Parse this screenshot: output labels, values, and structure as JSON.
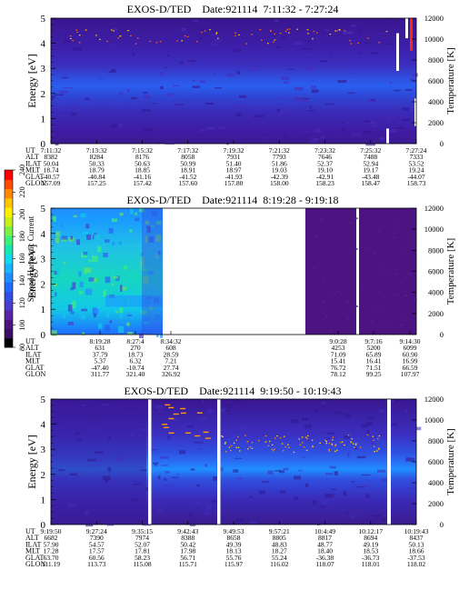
{
  "colorbar": {
    "label": "Second Harmonic Current",
    "ticks": [
      "80",
      "100",
      "120",
      "140",
      "160",
      "180",
      "200",
      "220",
      "240"
    ],
    "colors": [
      "#000000",
      "#3a0f63",
      "#4b1480",
      "#5a24a8",
      "#4a3ccc",
      "#3050e4",
      "#1f6bff",
      "#1f8fff",
      "#18b5ff",
      "#12d8e8",
      "#17e6b0",
      "#3ef07a",
      "#7ef045",
      "#c8f018",
      "#fff000",
      "#ffc400",
      "#ff8a00",
      "#ff4a00",
      "#ff0000"
    ]
  },
  "panels": [
    {
      "title": "EXOS-D/TED",
      "date": "Date:921114",
      "time": "7:11:32 - 7:27:24",
      "ylabel": "Energy [eV]",
      "y2label": "Temperature [K]",
      "yticks": [
        "0",
        "1",
        "2",
        "3",
        "4",
        "5"
      ],
      "y2ticks": [
        "0",
        "2000",
        "4000",
        "6000",
        "8000",
        "10000",
        "12000"
      ],
      "row_labels": [
        "UT",
        "ALT",
        "ILAT",
        "MLT",
        "GLAT",
        "GLON"
      ],
      "columns": [
        [
          "7:11:32",
          "8382",
          "50.04",
          "18.74",
          "-40.57",
          "157.09"
        ],
        [
          "7:13:32",
          "8284",
          "50.33",
          "18.79",
          "-40.84",
          "157.25"
        ],
        [
          "7:15:32",
          "8176",
          "50.63",
          "18.85",
          "-41.16",
          "157.42"
        ],
        [
          "7:17:32",
          "8058",
          "50.99",
          "18.91",
          "-41.52",
          "157.60"
        ],
        [
          "7:19:32",
          "7931",
          "51.40",
          "18.97",
          "-41.93",
          "157.80"
        ],
        [
          "7:21:32",
          "7793",
          "51.86",
          "19.03",
          "-42.39",
          "158.00"
        ],
        [
          "7:23:32",
          "7646",
          "52.37",
          "19.10",
          "-42.91",
          "158.23"
        ],
        [
          "7:25:32",
          "7488",
          "52.94",
          "19.17",
          "-43.48",
          "158.47"
        ],
        [
          "7:27:24",
          "7333",
          "53.52",
          "19.24",
          "-44.07",
          "158.73"
        ]
      ]
    },
    {
      "title": "EXOS-D/TED",
      "date": "Date:921114",
      "time": "8:19:28 - 9:19:18",
      "ylabel": "Energy [eV]",
      "y2label": "Temperature [K]",
      "yticks": [
        "0",
        "1",
        "2",
        "3",
        "4",
        "5"
      ],
      "y2ticks": [
        "0",
        "2000",
        "4000",
        "6000",
        "8000",
        "10000",
        "12000"
      ],
      "row_labels": [
        "UT",
        "ALT",
        "ILAT",
        "MLT",
        "GLAT",
        "GLON"
      ],
      "columns": [
        [
          "8:19:28",
          "631",
          "37.79",
          "5.37",
          "-47.40",
          "311.77"
        ],
        [
          "8:27:4",
          "270",
          "18.73",
          "6.32",
          "-10.74",
          "321.40"
        ],
        [
          "8:34:32",
          "608",
          "28.59",
          "7.21",
          "27.74",
          "326.92"
        ],
        [
          "9:0:28",
          "4253",
          "71.09",
          "15.41",
          "76.72",
          "78.12"
        ],
        [
          "9:7:16",
          "5200",
          "65.89",
          "16.41",
          "71.51",
          "99.25"
        ],
        [
          "9:14:30",
          "6099",
          "60.90",
          "16.99",
          "66.59",
          "107.97"
        ]
      ]
    },
    {
      "title": "EXOS-D/TED",
      "date": "Date:921114",
      "time": "9:19:50 - 10:19:43",
      "ylabel": "Energy [eV]",
      "y2label": "Temperature [K]",
      "yticks": [
        "0",
        "1",
        "2",
        "3",
        "4",
        "5"
      ],
      "y2ticks": [
        "0",
        "2000",
        "4000",
        "6000",
        "8000",
        "10000",
        "12000"
      ],
      "row_labels": [
        "UT",
        "ALT",
        "ILAT",
        "MLT",
        "GLAT",
        "GLON"
      ],
      "columns": [
        [
          "9:19:50",
          "6682",
          "57.90",
          "17.28",
          "63.70",
          "111.19"
        ],
        [
          "9:27:24",
          "7390",
          "54.57",
          "17.57",
          "60.56",
          "113.73"
        ],
        [
          "9:35:15",
          "7974",
          "52.07",
          "17.81",
          "58.23",
          "115.08"
        ],
        [
          "9:42:43",
          "8388",
          "50.42",
          "17.98",
          "56.71",
          "115.71"
        ],
        [
          "9:49:53",
          "8658",
          "49.39",
          "18.13",
          "55.76",
          "115.97"
        ],
        [
          "9:57:21",
          "8805",
          "48.83",
          "18.27",
          "55.24",
          "116.02"
        ],
        [
          "10:4:49",
          "8817",
          "48.77",
          "18.40",
          "-36.38",
          "118.07"
        ],
        [
          "10:12:17",
          "8694",
          "49.19",
          "18.53",
          "-36.73",
          "118.01"
        ],
        [
          "10:19:43",
          "8437",
          "50.13",
          "18.66",
          "-37.53",
          "118.02"
        ]
      ]
    }
  ],
  "chart_data": [
    {
      "type": "heatmap",
      "title": "EXOS-D/TED Date:921114 7:11:32 - 7:27:24",
      "ylabel": "Energy [eV]",
      "ylim": [
        0,
        5
      ],
      "y2label": "Temperature [K]",
      "y2lim": [
        0,
        12000
      ],
      "x": [
        "7:11:32",
        "7:13:32",
        "7:15:32",
        "7:17:32",
        "7:19:32",
        "7:21:32",
        "7:23:32",
        "7:25:32",
        "7:27:24"
      ],
      "band_center_eV": 2.3,
      "colorbar_range": [
        80,
        240
      ]
    },
    {
      "type": "heatmap",
      "title": "EXOS-D/TED Date:921114 8:19:28 - 9:19:18",
      "ylabel": "Energy [eV]",
      "ylim": [
        0,
        5
      ],
      "y2label": "Temperature [K]",
      "y2lim": [
        0,
        12000
      ],
      "x": [
        "8:19:28",
        "8:27:4",
        "8:34:32",
        "9:0:28",
        "9:7:16",
        "9:14:30"
      ],
      "colorbar_range": [
        80,
        240
      ]
    },
    {
      "type": "heatmap",
      "title": "EXOS-D/TED Date:921114 9:19:50 - 10:19:43",
      "ylabel": "Energy [eV]",
      "ylim": [
        0,
        5
      ],
      "y2label": "Temperature [K]",
      "y2lim": [
        0,
        12000
      ],
      "x": [
        "9:19:50",
        "9:27:24",
        "9:35:15",
        "9:42:43",
        "9:49:53",
        "9:57:21",
        "10:4:49",
        "10:12:17",
        "10:19:43"
      ],
      "band_center_eV": 2.4,
      "colorbar_range": [
        80,
        240
      ]
    }
  ]
}
